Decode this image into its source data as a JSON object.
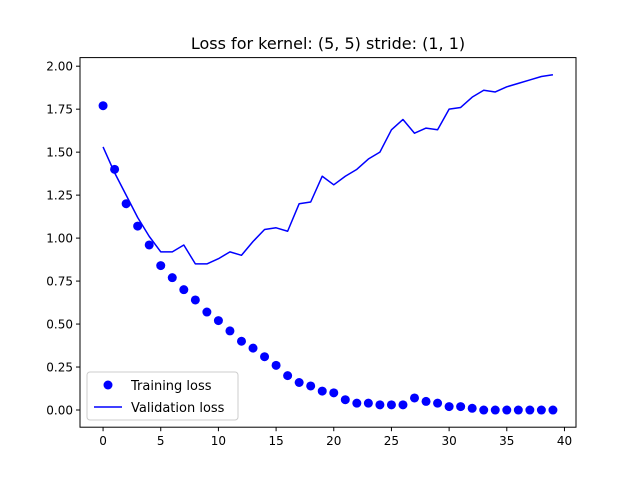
{
  "chart_data": {
    "type": "line",
    "title": "Loss for kernel: (5, 5) stride: (1, 1)",
    "xlabel": "",
    "ylabel": "",
    "xlim": [
      -2,
      41
    ],
    "ylim": [
      -0.1,
      2.05
    ],
    "x_ticks": [
      0,
      5,
      10,
      15,
      20,
      25,
      30,
      35,
      40
    ],
    "x_tick_labels": [
      "0",
      "5",
      "10",
      "15",
      "20",
      "25",
      "30",
      "35",
      "40"
    ],
    "y_ticks": [
      0,
      0.25,
      0.5,
      0.75,
      1.0,
      1.25,
      1.5,
      1.75,
      2.0
    ],
    "y_tick_labels": [
      "0.00",
      "0.25",
      "0.50",
      "0.75",
      "1.00",
      "1.25",
      "1.50",
      "1.75",
      "2.00"
    ],
    "grid": false,
    "legend_position": "lower-left",
    "color": "#0000ff",
    "x": [
      0,
      1,
      2,
      3,
      4,
      5,
      6,
      7,
      8,
      9,
      10,
      11,
      12,
      13,
      14,
      15,
      16,
      17,
      18,
      19,
      20,
      21,
      22,
      23,
      24,
      25,
      26,
      27,
      28,
      29,
      30,
      31,
      32,
      33,
      34,
      35,
      36,
      37,
      38,
      39
    ],
    "series": [
      {
        "name": "Training loss",
        "style": "markers",
        "values": [
          1.77,
          1.4,
          1.2,
          1.07,
          0.96,
          0.84,
          0.77,
          0.7,
          0.64,
          0.57,
          0.52,
          0.46,
          0.4,
          0.36,
          0.31,
          0.26,
          0.2,
          0.16,
          0.14,
          0.11,
          0.1,
          0.06,
          0.04,
          0.04,
          0.03,
          0.03,
          0.03,
          0.07,
          0.05,
          0.04,
          0.02,
          0.02,
          0.01,
          0.0,
          0.0,
          0.0,
          0.0,
          0.0,
          0.0,
          0.0
        ]
      },
      {
        "name": "Validation loss",
        "style": "line",
        "values": [
          1.53,
          1.38,
          1.25,
          1.12,
          1.01,
          0.92,
          0.92,
          0.96,
          0.85,
          0.85,
          0.88,
          0.92,
          0.9,
          0.98,
          1.05,
          1.06,
          1.04,
          1.2,
          1.21,
          1.36,
          1.31,
          1.36,
          1.4,
          1.46,
          1.5,
          1.63,
          1.69,
          1.61,
          1.64,
          1.63,
          1.75,
          1.76,
          1.82,
          1.86,
          1.85,
          1.88,
          1.9,
          1.92,
          1.94,
          1.95
        ]
      }
    ]
  }
}
